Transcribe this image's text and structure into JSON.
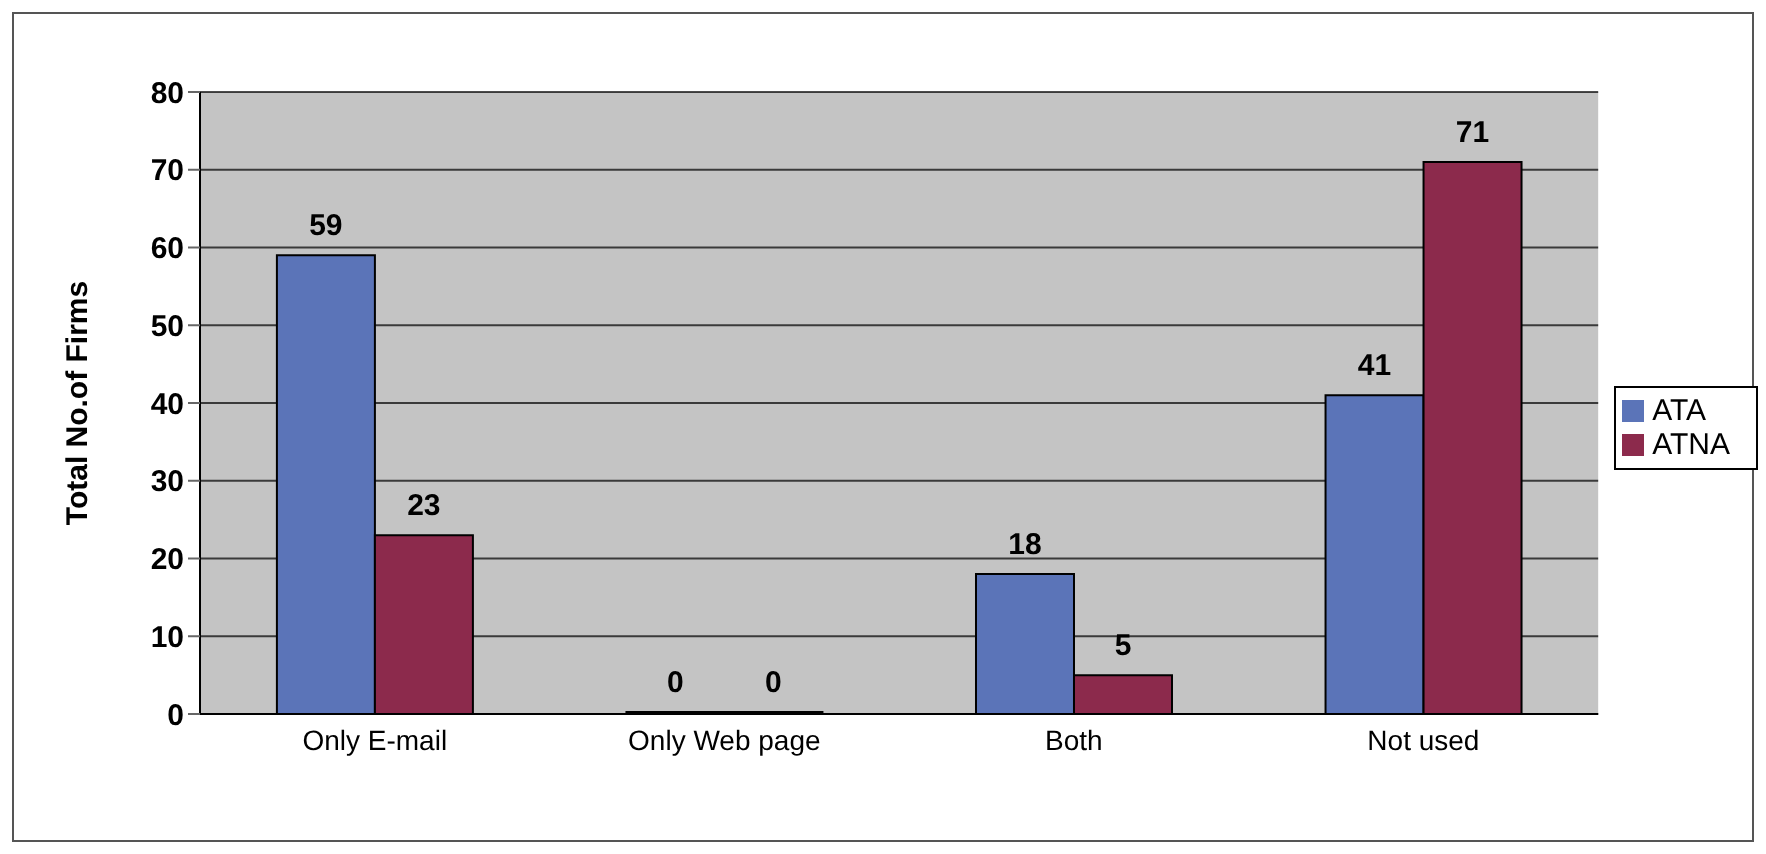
{
  "chart_data": {
    "type": "bar",
    "ylabel": "Total No.of Firms",
    "categories": [
      "Only E-mail",
      "Only Web page",
      "Both",
      "Not used"
    ],
    "series": [
      {
        "name": "ATA",
        "color": "#5b74b8",
        "values": [
          59,
          0,
          18,
          41
        ]
      },
      {
        "name": "ATNA",
        "color": "#8c2a4c",
        "values": [
          23,
          0,
          5,
          71
        ]
      }
    ],
    "ylim": [
      0,
      80
    ],
    "yticks": [
      0,
      10,
      20,
      30,
      40,
      50,
      60,
      70,
      80
    ],
    "grid": "y",
    "legend": "right",
    "data_labels": true
  }
}
